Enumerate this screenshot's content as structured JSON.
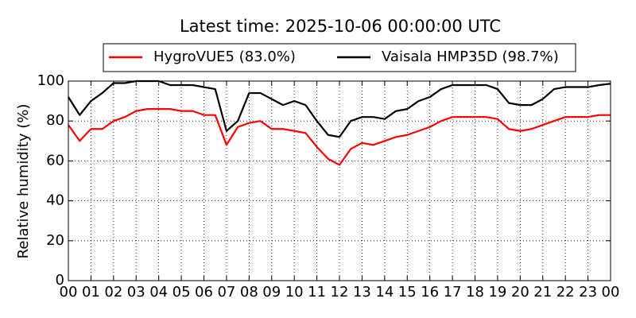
{
  "chart_data": {
    "type": "line",
    "title": "Latest time: 2025-10-06 00:00:00 UTC",
    "y_label": "Relative humidity (%)",
    "x": [
      0,
      0.5,
      1,
      1.5,
      2,
      2.5,
      3,
      3.5,
      4,
      4.5,
      5,
      5.5,
      6,
      6.5,
      7,
      7.5,
      8,
      8.5,
      9,
      9.5,
      10,
      10.5,
      11,
      11.5,
      12,
      12.5,
      13,
      13.5,
      14,
      14.5,
      15,
      15.5,
      16,
      16.5,
      17,
      17.5,
      18,
      18.5,
      19,
      19.5,
      20,
      20.5,
      21,
      21.5,
      22,
      22.5,
      23,
      23.5,
      24
    ],
    "series": [
      {
        "name": "HygroVUE5 (83.0%)",
        "color": "#ff0000",
        "values": [
          78,
          70,
          76,
          76,
          80,
          82,
          85,
          86,
          86,
          86,
          85,
          85,
          83,
          83,
          68,
          77,
          79,
          80,
          76,
          76,
          75,
          74,
          67,
          61,
          58,
          66,
          69,
          68,
          70,
          72,
          73,
          75,
          77,
          80,
          82,
          82,
          82,
          82,
          81,
          76,
          75,
          76,
          78,
          80,
          82,
          82,
          82,
          83,
          83
        ]
      },
      {
        "name": "Vaisala HMP35D (98.7%)",
        "color": "#000000",
        "values": [
          92,
          83,
          90,
          94,
          99,
          99,
          100,
          100,
          100,
          98,
          98,
          98,
          97,
          96,
          75,
          80,
          94,
          94,
          91,
          88,
          90,
          88,
          80,
          73,
          72,
          80,
          82,
          82,
          81,
          85,
          86,
          90,
          92,
          96,
          98,
          98,
          98,
          98,
          96,
          89,
          88,
          88,
          91,
          96,
          97,
          97,
          97,
          98,
          98.7
        ]
      }
    ],
    "xlim": [
      0,
      24
    ],
    "xticks": [
      {
        "value": 0,
        "label": "00"
      },
      {
        "value": 1,
        "label": "01"
      },
      {
        "value": 2,
        "label": "02"
      },
      {
        "value": 3,
        "label": "03"
      },
      {
        "value": 4,
        "label": "04"
      },
      {
        "value": 5,
        "label": "05"
      },
      {
        "value": 6,
        "label": "06"
      },
      {
        "value": 7,
        "label": "07"
      },
      {
        "value": 8,
        "label": "08"
      },
      {
        "value": 9,
        "label": "09"
      },
      {
        "value": 10,
        "label": "10"
      },
      {
        "value": 11,
        "label": "11"
      },
      {
        "value": 12,
        "label": "12"
      },
      {
        "value": 13,
        "label": "13"
      },
      {
        "value": 14,
        "label": "14"
      },
      {
        "value": 15,
        "label": "15"
      },
      {
        "value": 16,
        "label": "16"
      },
      {
        "value": 17,
        "label": "17"
      },
      {
        "value": 18,
        "label": "18"
      },
      {
        "value": 19,
        "label": "19"
      },
      {
        "value": 20,
        "label": "20"
      },
      {
        "value": 21,
        "label": "21"
      },
      {
        "value": 22,
        "label": "22"
      },
      {
        "value": 23,
        "label": "23"
      },
      {
        "value": 24,
        "label": "00"
      }
    ],
    "ylim": [
      0,
      100
    ],
    "yticks": [
      0,
      20,
      40,
      60,
      80,
      100
    ],
    "grid": true
  }
}
